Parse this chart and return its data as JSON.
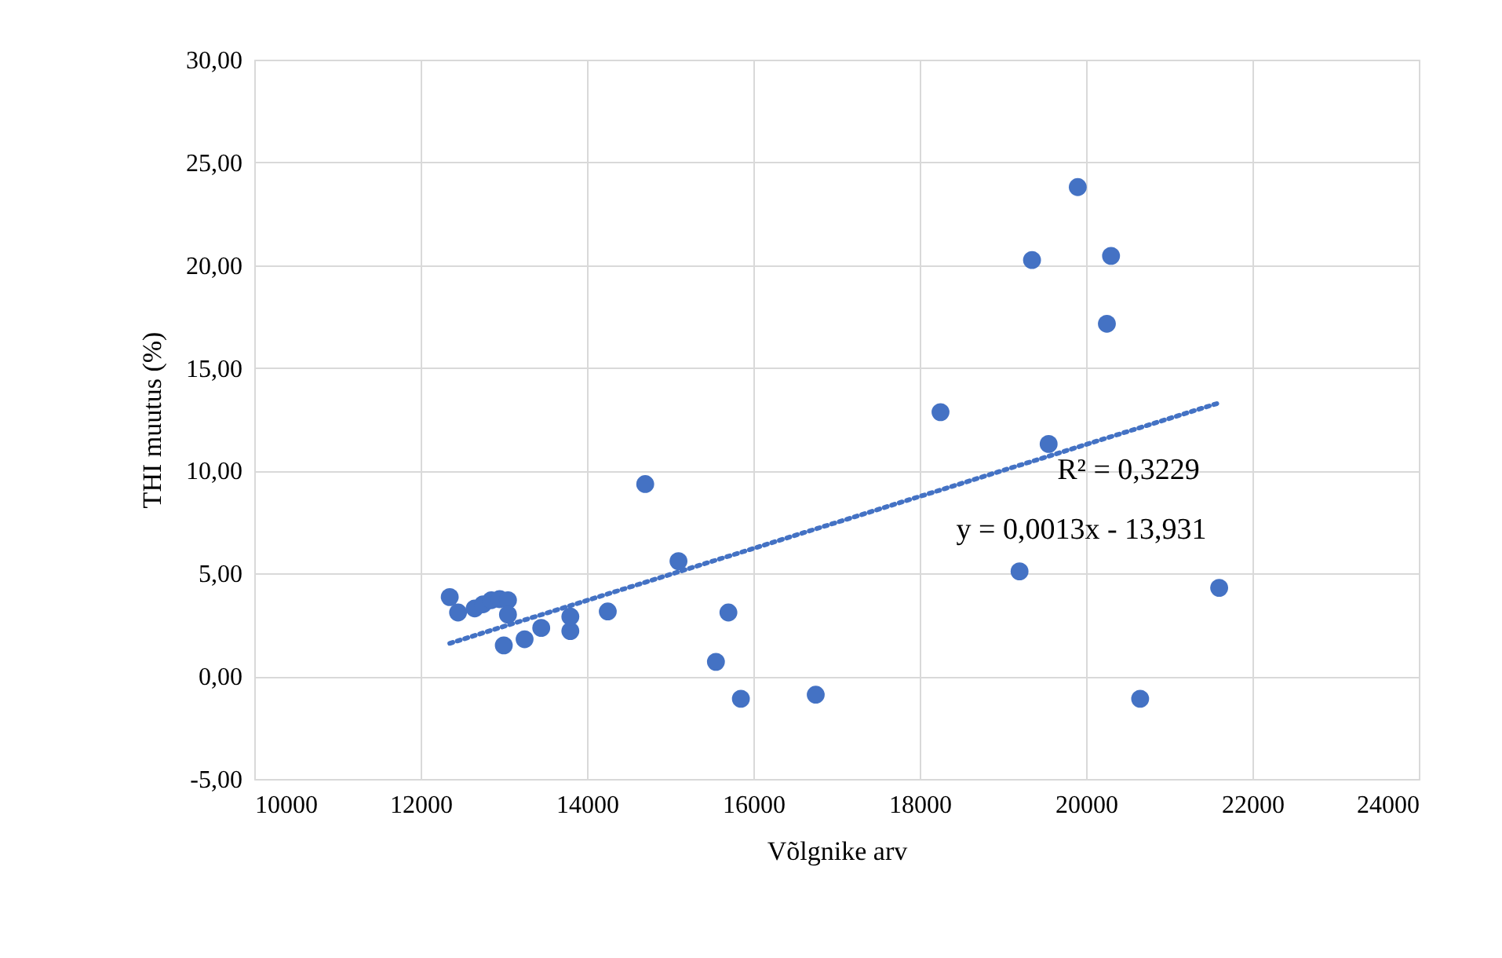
{
  "chart_data": {
    "type": "scatter",
    "xlabel": "Võlgnike arv",
    "ylabel": "THI muutus (%)",
    "xlim": [
      10000,
      24000
    ],
    "xticks": [
      10000,
      12000,
      14000,
      16000,
      18000,
      20000,
      22000,
      24000
    ],
    "ylim": [
      -5,
      30
    ],
    "yticks": [
      {
        "value": -5,
        "label": "-5,00"
      },
      {
        "value": 0,
        "label": "0,00"
      },
      {
        "value": 5,
        "label": "5,00"
      },
      {
        "value": 10,
        "label": "10,00"
      },
      {
        "value": 15,
        "label": "15,00"
      },
      {
        "value": 20,
        "label": "20,00"
      },
      {
        "value": 25,
        "label": "25,00"
      },
      {
        "value": 30,
        "label": "30,00"
      }
    ],
    "grid": true,
    "marker": "circle",
    "series": [
      {
        "color": "#4472c4",
        "x": [
          12350,
          12450,
          12650,
          12750,
          12850,
          12950,
          13050,
          13000,
          13050,
          13250,
          13450,
          13800,
          13800,
          14250,
          14700,
          15100,
          15550,
          15700,
          15850,
          16750,
          18250,
          19200,
          19350,
          19550,
          19900,
          20250,
          20300,
          20650,
          21600
        ],
        "values": [
          3.85,
          3.1,
          3.3,
          3.5,
          3.7,
          3.75,
          3.7,
          1.5,
          3.0,
          1.8,
          2.35,
          2.2,
          2.9,
          3.15,
          9.35,
          5.6,
          0.7,
          3.1,
          -1.1,
          -0.9,
          12.85,
          5.1,
          20.25,
          11.3,
          23.8,
          17.15,
          20.45,
          -1.1,
          4.3
        ]
      },
      {
        "type": "line",
        "color": "#4472c4",
        "line_style": "dotted",
        "marker": "none",
        "x": [
          12350,
          21600
        ],
        "values": [
          1.6,
          13.3
        ]
      }
    ],
    "annotations": [
      "R² = 0,3229",
      "y = 0,0013x - 13,931"
    ]
  }
}
